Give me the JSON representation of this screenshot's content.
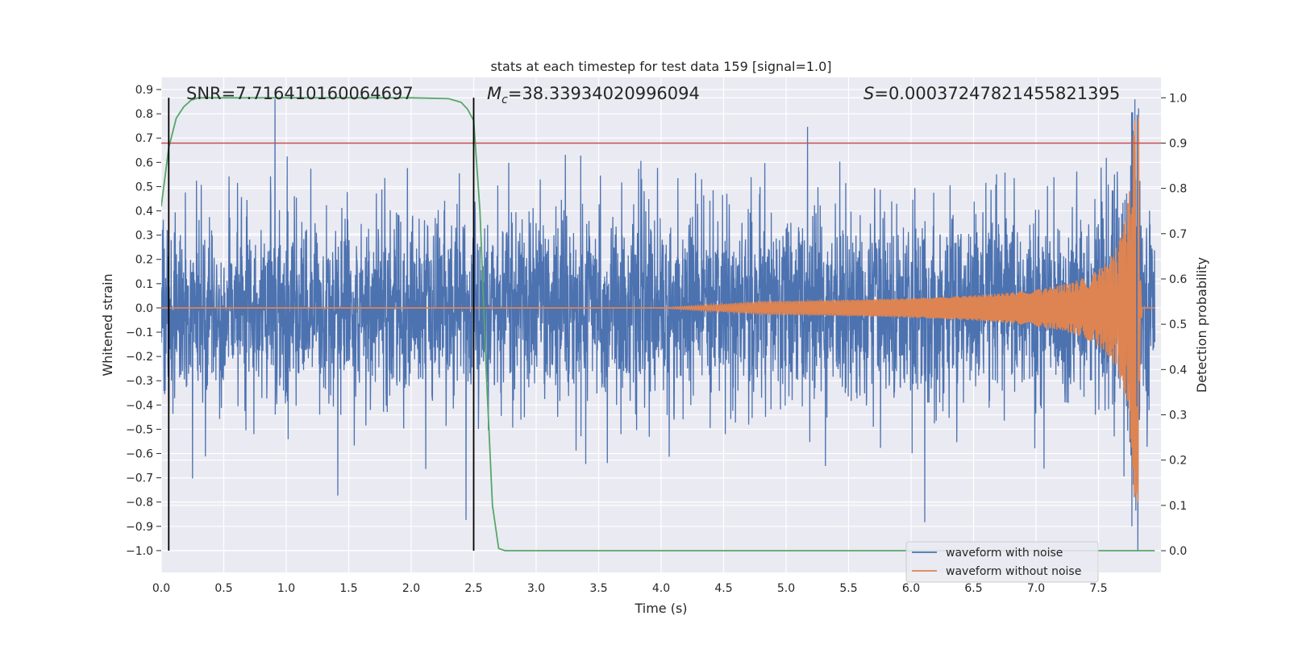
{
  "chart_data": {
    "type": "line",
    "title": "stats at each timestep for test data 159 [signal=1.0]",
    "xlabel": "Time (s)",
    "ylabel_left": "Whitened strain",
    "ylabel_right": "Detection probability",
    "xlim": [
      0.0,
      8.0
    ],
    "ylim_left": [
      -1.09,
      0.95
    ],
    "ylim_right": [
      -0.048,
      1.045
    ],
    "x_ticks": [
      "0.0",
      "0.5",
      "1.0",
      "1.5",
      "2.0",
      "2.5",
      "3.0",
      "3.5",
      "4.0",
      "4.5",
      "5.0",
      "5.5",
      "6.0",
      "6.5",
      "7.0",
      "7.5"
    ],
    "y_left_ticks": [
      "−1.0",
      "−0.9",
      "−0.8",
      "−0.7",
      "−0.6",
      "−0.5",
      "−0.4",
      "−0.3",
      "−0.2",
      "−0.1",
      "0.0",
      "0.1",
      "0.2",
      "0.3",
      "0.4",
      "0.5",
      "0.6",
      "0.7",
      "0.8",
      "0.9"
    ],
    "y_right_ticks": [
      "0.0",
      "0.1",
      "0.2",
      "0.3",
      "0.4",
      "0.5",
      "0.6",
      "0.7",
      "0.8",
      "0.9",
      "1.0"
    ],
    "grid": true,
    "legend_position": "lower-right",
    "annotations": {
      "snr": "SNR=7.716410160064697",
      "mc_symbol": "M",
      "mc_sub": "c",
      "mc_value": "=38.33934020996094",
      "s_symbol": "S",
      "s_value": "=0.00037247821455821395"
    },
    "threshold_probability": 0.9,
    "vertical_markers": [
      0.06,
      2.5
    ],
    "series": [
      {
        "name": "waveform with noise",
        "axis": "left",
        "color": "#4c72b0",
        "description_values": {
          "typical_range": [
            -0.5,
            0.5
          ],
          "max": 0.85,
          "min": -1.0,
          "duration": 8.0
        }
      },
      {
        "name": "waveform without noise",
        "axis": "left",
        "color": "#dd8452",
        "chirp": {
          "t_merger": 7.82,
          "peak_amplitude": 0.8,
          "start_time": 4.0
        }
      },
      {
        "axis": "right",
        "color": "#55a868",
        "x": [
          0.0,
          0.06,
          0.12,
          0.18,
          0.24,
          0.3,
          0.4,
          0.6,
          1.0,
          1.5,
          2.0,
          2.3,
          2.4,
          2.45,
          2.5,
          2.55,
          2.6,
          2.65,
          2.7,
          2.75,
          2.8,
          3.0,
          4.0,
          5.0,
          6.0,
          7.0,
          7.8,
          7.95
        ],
        "y": [
          0.76,
          0.89,
          0.955,
          0.98,
          0.995,
          1.0,
          1.0,
          1.0,
          1.0,
          1.0,
          1.0,
          0.998,
          0.99,
          0.975,
          0.95,
          0.75,
          0.4,
          0.1,
          0.005,
          0.0,
          0.0,
          0.0,
          0.0,
          0.0,
          0.0,
          0.0,
          0.0,
          0.0
        ]
      }
    ],
    "colors": {
      "background": "#eaeaf2",
      "grid": "#ffffff",
      "threshold": "#c44e52",
      "marker": "#000000",
      "text": "#262626"
    }
  }
}
